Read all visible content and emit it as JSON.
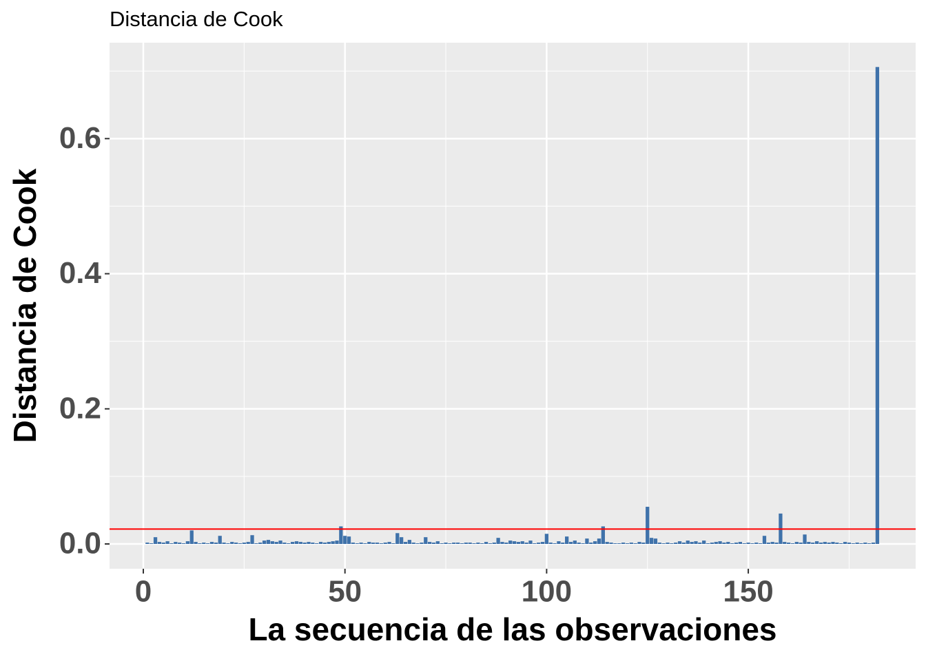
{
  "chart_data": {
    "type": "bar",
    "title": "Distancia de Cook",
    "x_label": "La secuencia de las observaciones",
    "y_label": "Distancia de Cook",
    "color": "#3f72aa",
    "hline": 0.022,
    "hline_color": "#ff0000",
    "xlim": [
      -8.37,
      191.5
    ],
    "ylim": [
      -0.0367,
      0.742
    ],
    "xticks": [
      0,
      50,
      100,
      150
    ],
    "x_minor_breaks": [
      25,
      75,
      125,
      175
    ],
    "yticks": [
      {
        "value": 0,
        "label": "0.0"
      },
      0.2,
      0.4,
      0.6
    ],
    "y_minor_breaks": [
      0.1,
      0.3,
      0.5,
      0.7
    ],
    "grid": true,
    "x": [
      1,
      2,
      3,
      4,
      5,
      6,
      7,
      8,
      9,
      10,
      11,
      12,
      13,
      14,
      15,
      16,
      17,
      18,
      19,
      20,
      21,
      22,
      23,
      24,
      25,
      26,
      27,
      28,
      29,
      30,
      31,
      32,
      33,
      34,
      35,
      36,
      37,
      38,
      39,
      40,
      41,
      42,
      43,
      44,
      45,
      46,
      47,
      48,
      49,
      50,
      51,
      52,
      53,
      54,
      55,
      56,
      57,
      58,
      59,
      60,
      61,
      62,
      63,
      64,
      65,
      66,
      67,
      68,
      69,
      70,
      71,
      72,
      73,
      74,
      75,
      76,
      77,
      78,
      79,
      80,
      81,
      82,
      83,
      84,
      85,
      86,
      87,
      88,
      89,
      90,
      91,
      92,
      93,
      94,
      95,
      96,
      97,
      98,
      99,
      100,
      101,
      102,
      103,
      104,
      105,
      106,
      107,
      108,
      109,
      110,
      111,
      112,
      113,
      114,
      115,
      116,
      117,
      118,
      119,
      120,
      121,
      122,
      123,
      124,
      125,
      126,
      127,
      128,
      129,
      130,
      131,
      132,
      133,
      134,
      135,
      136,
      137,
      138,
      139,
      140,
      141,
      142,
      143,
      144,
      145,
      146,
      147,
      148,
      149,
      150,
      151,
      152,
      153,
      154,
      155,
      156,
      157,
      158,
      159,
      160,
      161,
      162,
      163,
      164,
      165,
      166,
      167,
      168,
      169,
      170,
      171,
      172,
      173,
      174,
      175,
      176,
      177,
      178,
      179,
      180,
      181,
      182
    ],
    "values": [
      0.002,
      0.001,
      0.01,
      0.003,
      0.002,
      0.004,
      0.001,
      0.003,
      0.002,
      0.001,
      0.004,
      0.02,
      0.003,
      0.001,
      0.002,
      0.001,
      0.003,
      0.002,
      0.012,
      0.002,
      0.001,
      0.003,
      0.002,
      0.001,
      0.002,
      0.003,
      0.013,
      0.001,
      0.002,
      0.005,
      0.006,
      0.004,
      0.003,
      0.005,
      0.002,
      0.001,
      0.003,
      0.004,
      0.003,
      0.002,
      0.003,
      0.002,
      0.001,
      0.003,
      0.002,
      0.003,
      0.004,
      0.005,
      0.026,
      0.012,
      0.011,
      0.002,
      0.001,
      0.002,
      0.001,
      0.003,
      0.002,
      0.002,
      0.001,
      0.002,
      0.003,
      0.001,
      0.016,
      0.01,
      0.003,
      0.006,
      0.002,
      0.001,
      0.002,
      0.01,
      0.003,
      0.002,
      0.004,
      0.001,
      0.002,
      0.001,
      0.002,
      0.002,
      0.001,
      0.002,
      0.002,
      0.001,
      0.002,
      0.001,
      0.003,
      0.001,
      0.002,
      0.009,
      0.003,
      0.002,
      0.005,
      0.004,
      0.003,
      0.004,
      0.002,
      0.005,
      0.001,
      0.002,
      0.003,
      0.015,
      0.002,
      0.001,
      0.004,
      0.002,
      0.011,
      0.003,
      0.005,
      0.002,
      0.001,
      0.008,
      0.002,
      0.004,
      0.008,
      0.026,
      0.003,
      0.002,
      0.001,
      0.001,
      0.002,
      0.001,
      0.002,
      0.001,
      0.003,
      0.002,
      0.055,
      0.009,
      0.008,
      0.002,
      0.001,
      0.002,
      0.001,
      0.002,
      0.004,
      0.002,
      0.005,
      0.003,
      0.004,
      0.002,
      0.005,
      0.001,
      0.002,
      0.003,
      0.004,
      0.002,
      0.003,
      0.001,
      0.002,
      0.003,
      0.001,
      0.002,
      0.001,
      0.002,
      0.001,
      0.012,
      0.002,
      0.003,
      0.002,
      0.045,
      0.003,
      0.002,
      0.001,
      0.003,
      0.002,
      0.014,
      0.003,
      0.002,
      0.004,
      0.002,
      0.003,
      0.002,
      0.003,
      0.002,
      0.001,
      0.003,
      0.002,
      0.001,
      0.002,
      0.001,
      0.002,
      0.001,
      0.002,
      0.706
    ]
  }
}
